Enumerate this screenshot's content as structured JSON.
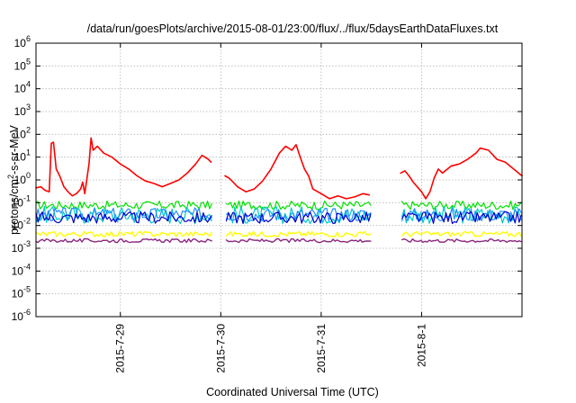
{
  "chart_data": {
    "type": "line",
    "title": "/data/run/goesPlots/archive/2015-08-01/23:00/flux/../flux/5daysEarthDataFluxes.txt",
    "xlabel": "Coordinated Universal Time (UTC)",
    "ylabel": {
      "prefix": "protons/cm",
      "sup": "2",
      "suffix": "-s-sr-MeV"
    },
    "y_scale": "log",
    "ylim": [
      1e-06,
      1000000.0
    ],
    "y_ticks": [
      {
        "exp": "-6",
        "value": 1e-06
      },
      {
        "exp": "-5",
        "value": 1e-05
      },
      {
        "exp": "-4",
        "value": 0.0001
      },
      {
        "exp": "-3",
        "value": 0.001
      },
      {
        "exp": "-2",
        "value": 0.01
      },
      {
        "exp": "-1",
        "value": 0.1
      },
      {
        "exp": "0",
        "value": 1
      },
      {
        "exp": "1",
        "value": 10
      },
      {
        "exp": "2",
        "value": 100
      },
      {
        "exp": "3",
        "value": 1000
      },
      {
        "exp": "4",
        "value": 10000
      },
      {
        "exp": "5",
        "value": 100000
      },
      {
        "exp": "6",
        "value": 1000000
      }
    ],
    "x_range": [
      "2015-07-28 03:50",
      "2015-08-02 00:00"
    ],
    "x_ticks": [
      "2015-7-29",
      "2015-7-30",
      "2015-7-31",
      "2015-8-1"
    ],
    "grid": true,
    "data_gaps": [
      [
        "2015-07-29 22:00",
        "2015-07-30 01:00"
      ],
      [
        "2015-07-31 12:00",
        "2015-07-31 19:00"
      ]
    ],
    "series": [
      {
        "color": "#ff0000",
        "width": 1.6,
        "points": [
          [
            "2015-07-28 03:50",
            0.45
          ],
          [
            "2015-07-28 05:00",
            0.5
          ],
          [
            "2015-07-28 06:00",
            0.35
          ],
          [
            "2015-07-28 07:00",
            0.3
          ],
          [
            "2015-07-28 07:30",
            40
          ],
          [
            "2015-07-28 08:00",
            45
          ],
          [
            "2015-07-28 08:40",
            3
          ],
          [
            "2015-07-28 09:30",
            1.5
          ],
          [
            "2015-07-28 10:30",
            0.5
          ],
          [
            "2015-07-28 11:30",
            0.3
          ],
          [
            "2015-07-28 12:30",
            0.2
          ],
          [
            "2015-07-28 13:30",
            0.25
          ],
          [
            "2015-07-28 14:30",
            0.4
          ],
          [
            "2015-07-28 15:00",
            0.8
          ],
          [
            "2015-07-28 15:30",
            0.25
          ],
          [
            "2015-07-28 16:30",
            5
          ],
          [
            "2015-07-28 17:00",
            70
          ],
          [
            "2015-07-28 17:30",
            20
          ],
          [
            "2015-07-28 18:30",
            30
          ],
          [
            "2015-07-28 20:00",
            15
          ],
          [
            "2015-07-28 22:00",
            10
          ],
          [
            "2015-07-29 00:00",
            5
          ],
          [
            "2015-07-29 02:00",
            3
          ],
          [
            "2015-07-29 04:00",
            1.5
          ],
          [
            "2015-07-29 06:00",
            0.9
          ],
          [
            "2015-07-29 08:00",
            0.7
          ],
          [
            "2015-07-29 10:00",
            0.5
          ],
          [
            "2015-07-29 12:00",
            0.7
          ],
          [
            "2015-07-29 14:00",
            1.0
          ],
          [
            "2015-07-29 16:00",
            2
          ],
          [
            "2015-07-29 18:00",
            5
          ],
          [
            "2015-07-29 19:30",
            12
          ],
          [
            "2015-07-29 21:00",
            8
          ],
          [
            "2015-07-29 21:40",
            6
          ],
          null,
          [
            "2015-07-30 01:00",
            1.5
          ],
          [
            "2015-07-30 02:00",
            1.2
          ],
          [
            "2015-07-30 04:00",
            0.5
          ],
          [
            "2015-07-30 06:00",
            0.3
          ],
          [
            "2015-07-30 08:00",
            0.4
          ],
          [
            "2015-07-30 10:00",
            0.9
          ],
          [
            "2015-07-30 12:00",
            3
          ],
          [
            "2015-07-30 14:00",
            15
          ],
          [
            "2015-07-30 15:30",
            30
          ],
          [
            "2015-07-30 17:00",
            20
          ],
          [
            "2015-07-30 18:00",
            35
          ],
          [
            "2015-07-30 19:00",
            10
          ],
          [
            "2015-07-30 20:00",
            3
          ],
          [
            "2015-07-30 21:00",
            1.5
          ],
          [
            "2015-07-30 22:00",
            0.4
          ],
          [
            "2015-07-31 00:00",
            0.25
          ],
          [
            "2015-07-31 02:00",
            0.15
          ],
          [
            "2015-07-31 04:00",
            0.2
          ],
          [
            "2015-07-31 06:00",
            0.15
          ],
          [
            "2015-07-31 08:00",
            0.18
          ],
          [
            "2015-07-31 10:00",
            0.25
          ],
          [
            "2015-07-31 11:30",
            0.22
          ],
          null,
          [
            "2015-07-31 19:00",
            2
          ],
          [
            "2015-07-31 20:00",
            2.5
          ],
          [
            "2015-07-31 21:00",
            1.5
          ],
          [
            "2015-07-31 22:00",
            0.8
          ],
          [
            "2015-08-01 00:00",
            0.3
          ],
          [
            "2015-08-01 01:00",
            0.15
          ],
          [
            "2015-08-01 02:00",
            0.3
          ],
          [
            "2015-08-01 03:00",
            1.2
          ],
          [
            "2015-08-01 04:00",
            3
          ],
          [
            "2015-08-01 05:00",
            2
          ],
          [
            "2015-08-01 07:00",
            4
          ],
          [
            "2015-08-01 09:00",
            5
          ],
          [
            "2015-08-01 11:00",
            8
          ],
          [
            "2015-08-01 13:00",
            15
          ],
          [
            "2015-08-01 14:00",
            25
          ],
          [
            "2015-08-01 16:00",
            20
          ],
          [
            "2015-08-01 18:00",
            8
          ],
          [
            "2015-08-01 20:00",
            6
          ],
          [
            "2015-08-01 22:00",
            3
          ],
          [
            "2015-08-02 00:00",
            1.5
          ]
        ]
      },
      {
        "color": "#00e000",
        "band": [
          0.05,
          0.12
        ],
        "width": 1.2
      },
      {
        "color": "#00c8c8",
        "band": [
          0.012,
          0.07
        ],
        "width": 1.2
      },
      {
        "color": "#1e90ff",
        "band": [
          0.015,
          0.06
        ],
        "width": 1.2
      },
      {
        "color": "#0000cd",
        "band": [
          0.012,
          0.04
        ],
        "width": 1.2
      },
      {
        "color": "#ffff00",
        "band": [
          0.0032,
          0.0055
        ],
        "width": 1.4
      },
      {
        "color": "#8b2580",
        "band": [
          0.0018,
          0.0026
        ],
        "width": 1.4
      }
    ]
  }
}
